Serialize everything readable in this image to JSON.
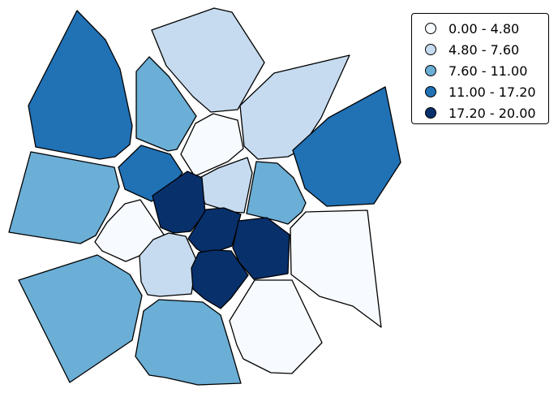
{
  "legend": {
    "items": [
      {
        "label": "0.00 - 4.80",
        "color": "#f7fbff"
      },
      {
        "label": "4.80 - 7.60",
        "color": "#c6dbef"
      },
      {
        "label": "7.60 - 11.00",
        "color": "#6baed6"
      },
      {
        "label": "11.00 - 17.20",
        "color": "#2171b5"
      },
      {
        "label": "17.20 - 20.00",
        "color": "#08306b"
      }
    ]
  },
  "map": {
    "region_classes": [
      3,
      1,
      1,
      3,
      2,
      0,
      2,
      3,
      1,
      2,
      2,
      0,
      4,
      0,
      1,
      4,
      4,
      0,
      4,
      2,
      2,
      0
    ]
  }
}
